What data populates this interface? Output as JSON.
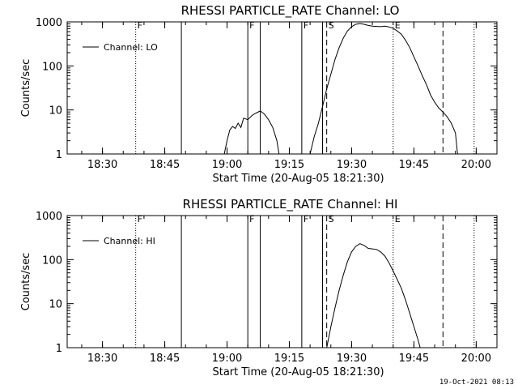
{
  "footer": {
    "timestamp": "19-Oct-2021 08:13"
  },
  "chart_data": [
    {
      "type": "line",
      "title": "RHESSI PARTICLE_RATE Channel: LO",
      "xlabel": "Start Time (20-Aug-05 18:21:30)",
      "ylabel": "Counts/sec",
      "y_scale": "log",
      "xlim": [
        "18:21:30",
        "20:05:00"
      ],
      "ylim": [
        1,
        1000
      ],
      "x_ticks": [
        "18:30",
        "18:45",
        "19:00",
        "19:15",
        "19:30",
        "19:45",
        "20:00"
      ],
      "y_ticks": [
        "1",
        "10",
        "100",
        "1000"
      ],
      "legend_position": "top-left",
      "series": [
        {
          "name": "Channel: LO",
          "segments": [
            [
              [
                "18:59:20",
                1
              ],
              [
                "19:00:00",
                2
              ],
              [
                "19:00:40",
                3.5
              ],
              [
                "19:01:20",
                4.2
              ],
              [
                "19:02:00",
                3.8
              ],
              [
                "19:02:40",
                5
              ],
              [
                "19:03:20",
                4
              ],
              [
                "19:04:00",
                6.5
              ],
              [
                "19:05:00",
                6
              ],
              [
                "19:06:00",
                7.5
              ],
              [
                "19:07:00",
                8.5
              ],
              [
                "19:08:00",
                9.5
              ],
              [
                "19:09:00",
                8
              ],
              [
                "19:10:00",
                6
              ],
              [
                "19:11:00",
                4
              ],
              [
                "19:12:00",
                2
              ],
              [
                "19:12:30",
                1
              ]
            ],
            [
              [
                "19:20:00",
                1
              ],
              [
                "19:21:00",
                2.5
              ],
              [
                "19:22:00",
                5
              ],
              [
                "19:23:00",
                12
              ],
              [
                "19:24:00",
                30
              ],
              [
                "19:25:00",
                65
              ],
              [
                "19:26:00",
                140
              ],
              [
                "19:27:00",
                260
              ],
              [
                "19:28:00",
                430
              ],
              [
                "19:29:00",
                620
              ],
              [
                "19:30:00",
                780
              ],
              [
                "19:31:00",
                880
              ],
              [
                "19:32:00",
                920
              ],
              [
                "19:33:00",
                880
              ],
              [
                "19:34:00",
                830
              ],
              [
                "19:35:00",
                800
              ],
              [
                "19:36:00",
                790
              ],
              [
                "19:37:00",
                780
              ],
              [
                "19:38:00",
                800
              ],
              [
                "19:39:00",
                770
              ],
              [
                "19:40:00",
                720
              ],
              [
                "19:41:00",
                620
              ],
              [
                "19:42:00",
                520
              ],
              [
                "19:43:00",
                380
              ],
              [
                "19:44:00",
                260
              ],
              [
                "19:45:00",
                160
              ],
              [
                "19:46:00",
                100
              ],
              [
                "19:47:00",
                60
              ],
              [
                "19:48:00",
                38
              ],
              [
                "19:49:00",
                22
              ],
              [
                "19:50:00",
                15
              ],
              [
                "19:51:00",
                11
              ],
              [
                "19:52:00",
                9
              ],
              [
                "19:53:00",
                7
              ],
              [
                "19:54:00",
                5
              ],
              [
                "19:55:00",
                3
              ],
              [
                "19:55:30",
                1
              ]
            ]
          ]
        }
      ],
      "markers": [
        {
          "time": "18:38:00",
          "style": "dotted",
          "label": "F"
        },
        {
          "time": "18:49:00",
          "style": "solid",
          "label": ""
        },
        {
          "time": "19:05:00",
          "style": "solid",
          "label": "F"
        },
        {
          "time": "19:08:00",
          "style": "solid",
          "label": ""
        },
        {
          "time": "19:18:00",
          "style": "solid",
          "label": "F"
        },
        {
          "time": "19:23:00",
          "style": "solid",
          "label": ""
        },
        {
          "time": "19:24:00",
          "style": "dashed",
          "label": "S"
        },
        {
          "time": "19:40:00",
          "style": "dotted",
          "label": "E"
        },
        {
          "time": "19:52:00",
          "style": "dashed",
          "label": ""
        },
        {
          "time": "19:59:30",
          "style": "dotted",
          "label": ""
        }
      ]
    },
    {
      "type": "line",
      "title": "RHESSI PARTICLE_RATE Channel: HI",
      "xlabel": "Start Time (20-Aug-05 18:21:30)",
      "ylabel": "Counts/sec",
      "y_scale": "log",
      "xlim": [
        "18:21:30",
        "20:05:00"
      ],
      "ylim": [
        1,
        1000
      ],
      "x_ticks": [
        "18:30",
        "18:45",
        "19:00",
        "19:15",
        "19:30",
        "19:45",
        "20:00"
      ],
      "y_ticks": [
        "1",
        "10",
        "100",
        "1000"
      ],
      "legend_position": "top-left",
      "series": [
        {
          "name": "Channel: HI",
          "segments": [
            [
              [
                "19:24:00",
                1
              ],
              [
                "19:25:00",
                3
              ],
              [
                "19:26:00",
                8
              ],
              [
                "19:27:00",
                20
              ],
              [
                "19:28:00",
                45
              ],
              [
                "19:29:00",
                90
              ],
              [
                "19:30:00",
                150
              ],
              [
                "19:31:00",
                200
              ],
              [
                "19:32:00",
                230
              ],
              [
                "19:33:00",
                210
              ],
              [
                "19:34:00",
                180
              ],
              [
                "19:35:00",
                175
              ],
              [
                "19:36:00",
                170
              ],
              [
                "19:37:00",
                150
              ],
              [
                "19:38:00",
                120
              ],
              [
                "19:39:00",
                85
              ],
              [
                "19:40:00",
                55
              ],
              [
                "19:41:00",
                35
              ],
              [
                "19:42:00",
                22
              ],
              [
                "19:43:00",
                12
              ],
              [
                "19:44:00",
                6
              ],
              [
                "19:45:00",
                3
              ],
              [
                "19:46:00",
                1.5
              ],
              [
                "19:46:30",
                1
              ]
            ]
          ]
        }
      ],
      "markers": [
        {
          "time": "18:38:00",
          "style": "dotted",
          "label": "F"
        },
        {
          "time": "18:49:00",
          "style": "solid",
          "label": ""
        },
        {
          "time": "19:05:00",
          "style": "solid",
          "label": "F"
        },
        {
          "time": "19:08:00",
          "style": "solid",
          "label": ""
        },
        {
          "time": "19:18:00",
          "style": "solid",
          "label": "F"
        },
        {
          "time": "19:23:00",
          "style": "solid",
          "label": ""
        },
        {
          "time": "19:24:00",
          "style": "dashed",
          "label": "S"
        },
        {
          "time": "19:40:00",
          "style": "dotted",
          "label": "E"
        },
        {
          "time": "19:52:00",
          "style": "dashed",
          "label": ""
        },
        {
          "time": "19:59:30",
          "style": "dotted",
          "label": ""
        }
      ]
    }
  ]
}
